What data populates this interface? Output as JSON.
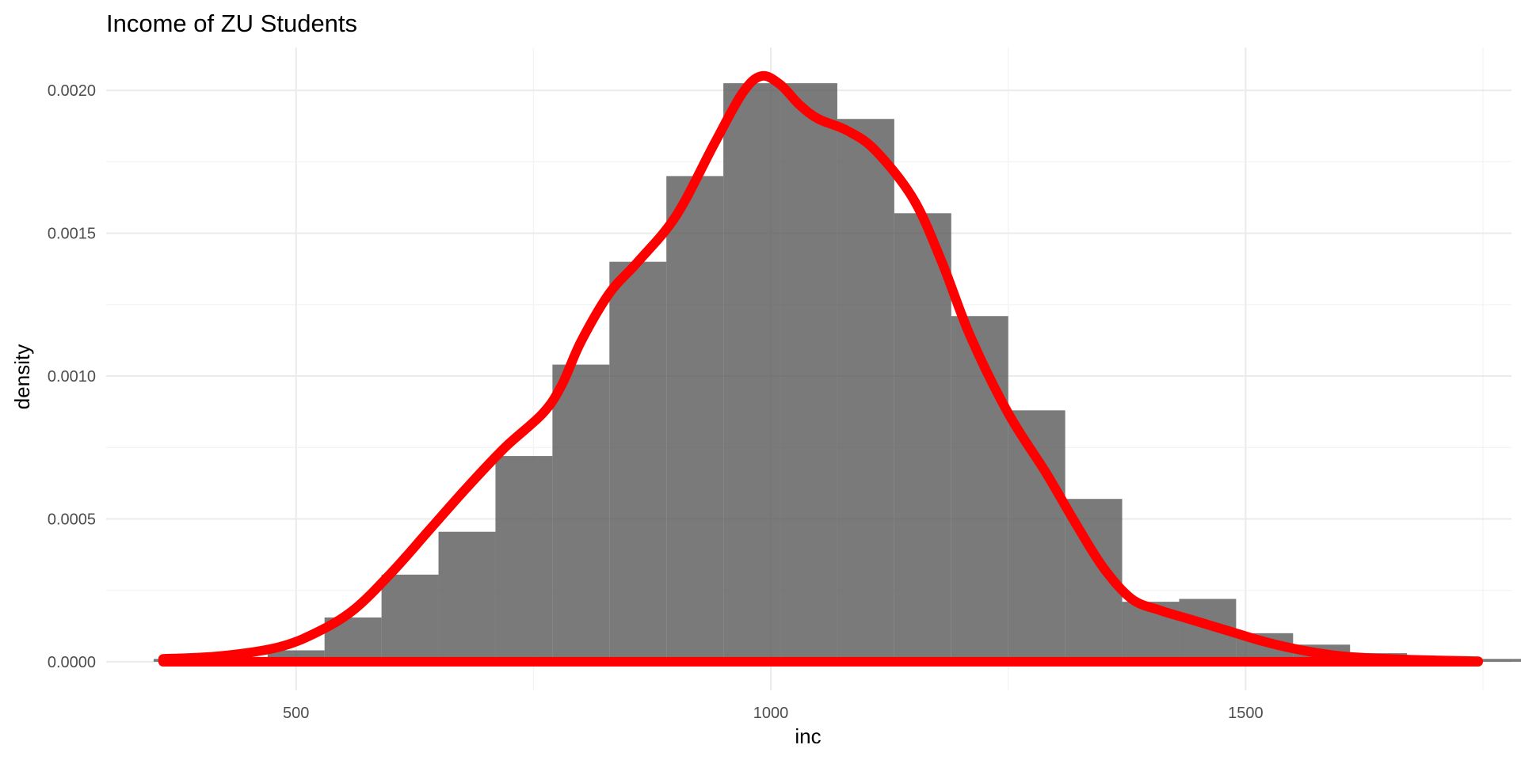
{
  "chart_data": {
    "type": "bar",
    "title": "Income of ZU Students",
    "xlabel": "inc",
    "ylabel": "density",
    "xlim": [
      300,
      1780
    ],
    "ylim": [
      -0.0001,
      0.00215
    ],
    "x_ticks": [
      500,
      1000,
      1500
    ],
    "x_minor_ticks": [
      750,
      1250,
      1750
    ],
    "y_ticks": [
      0,
      0.0005,
      0.001,
      0.0015,
      0.002
    ],
    "y_minor_ticks": [
      0.00025,
      0.00075,
      0.00125,
      0.00175
    ],
    "x_tick_labels": [
      "500",
      "1000",
      "1500"
    ],
    "y_tick_labels": [
      "0.0000",
      "0.0005",
      "0.0010",
      "0.0015",
      "0.0020"
    ],
    "grid": true,
    "bin_width": 60,
    "bars": [
      {
        "x0": 350,
        "x1": 410,
        "density": 1e-05
      },
      {
        "x0": 410,
        "x1": 470,
        "density": 1e-05
      },
      {
        "x0": 470,
        "x1": 530,
        "density": 4e-05
      },
      {
        "x0": 530,
        "x1": 590,
        "density": 0.000155
      },
      {
        "x0": 590,
        "x1": 650,
        "density": 0.000305
      },
      {
        "x0": 650,
        "x1": 710,
        "density": 0.000455
      },
      {
        "x0": 710,
        "x1": 770,
        "density": 0.00072
      },
      {
        "x0": 770,
        "x1": 830,
        "density": 0.00104
      },
      {
        "x0": 830,
        "x1": 890,
        "density": 0.0014
      },
      {
        "x0": 890,
        "x1": 950,
        "density": 0.0017
      },
      {
        "x0": 950,
        "x1": 1010,
        "density": 0.002025
      },
      {
        "x0": 1010,
        "x1": 1070,
        "density": 0.002025
      },
      {
        "x0": 1070,
        "x1": 1130,
        "density": 0.0019
      },
      {
        "x0": 1130,
        "x1": 1190,
        "density": 0.00157
      },
      {
        "x0": 1190,
        "x1": 1250,
        "density": 0.00121
      },
      {
        "x0": 1250,
        "x1": 1310,
        "density": 0.00088
      },
      {
        "x0": 1310,
        "x1": 1370,
        "density": 0.00057
      },
      {
        "x0": 1370,
        "x1": 1430,
        "density": 0.00021
      },
      {
        "x0": 1430,
        "x1": 1490,
        "density": 0.00022
      },
      {
        "x0": 1490,
        "x1": 1550,
        "density": 0.0001
      },
      {
        "x0": 1550,
        "x1": 1610,
        "density": 6e-05
      },
      {
        "x0": 1610,
        "x1": 1670,
        "density": 3e-05
      },
      {
        "x0": 1670,
        "x1": 1730,
        "density": 1e-05
      },
      {
        "x0": 1730,
        "x1": 1790,
        "density": 1e-05
      }
    ],
    "density_curve": {
      "x": [
        360,
        420,
        480,
        520,
        560,
        600,
        640,
        680,
        720,
        760,
        780,
        800,
        830,
        860,
        900,
        940,
        970,
        990,
        1010,
        1030,
        1050,
        1080,
        1110,
        1150,
        1180,
        1210,
        1250,
        1290,
        1320,
        1350,
        1380,
        1410,
        1440,
        1480,
        1520,
        1560,
        1600,
        1650,
        1700,
        1745
      ],
      "y": [
        1e-05,
        2e-05,
        5e-05,
        0.0001,
        0.00018,
        0.00031,
        0.00046,
        0.00061,
        0.00075,
        0.00087,
        0.00097,
        0.00112,
        0.00129,
        0.0014,
        0.00156,
        0.00181,
        0.00199,
        0.00205,
        0.00202,
        0.00195,
        0.0019,
        0.00186,
        0.00179,
        0.00162,
        0.0014,
        0.00114,
        0.00087,
        0.00066,
        0.00049,
        0.00033,
        0.00022,
        0.00018,
        0.00015,
        0.00011,
        7e-05,
        4e-05,
        2e-05,
        1e-05,
        5e-06,
        2e-06
      ]
    },
    "colors": {
      "bar": "#595959",
      "bar_opacity": 0.8,
      "curve": "#ff0000",
      "grid": "#ebebeb",
      "tick_label": "#4d4d4d"
    }
  }
}
